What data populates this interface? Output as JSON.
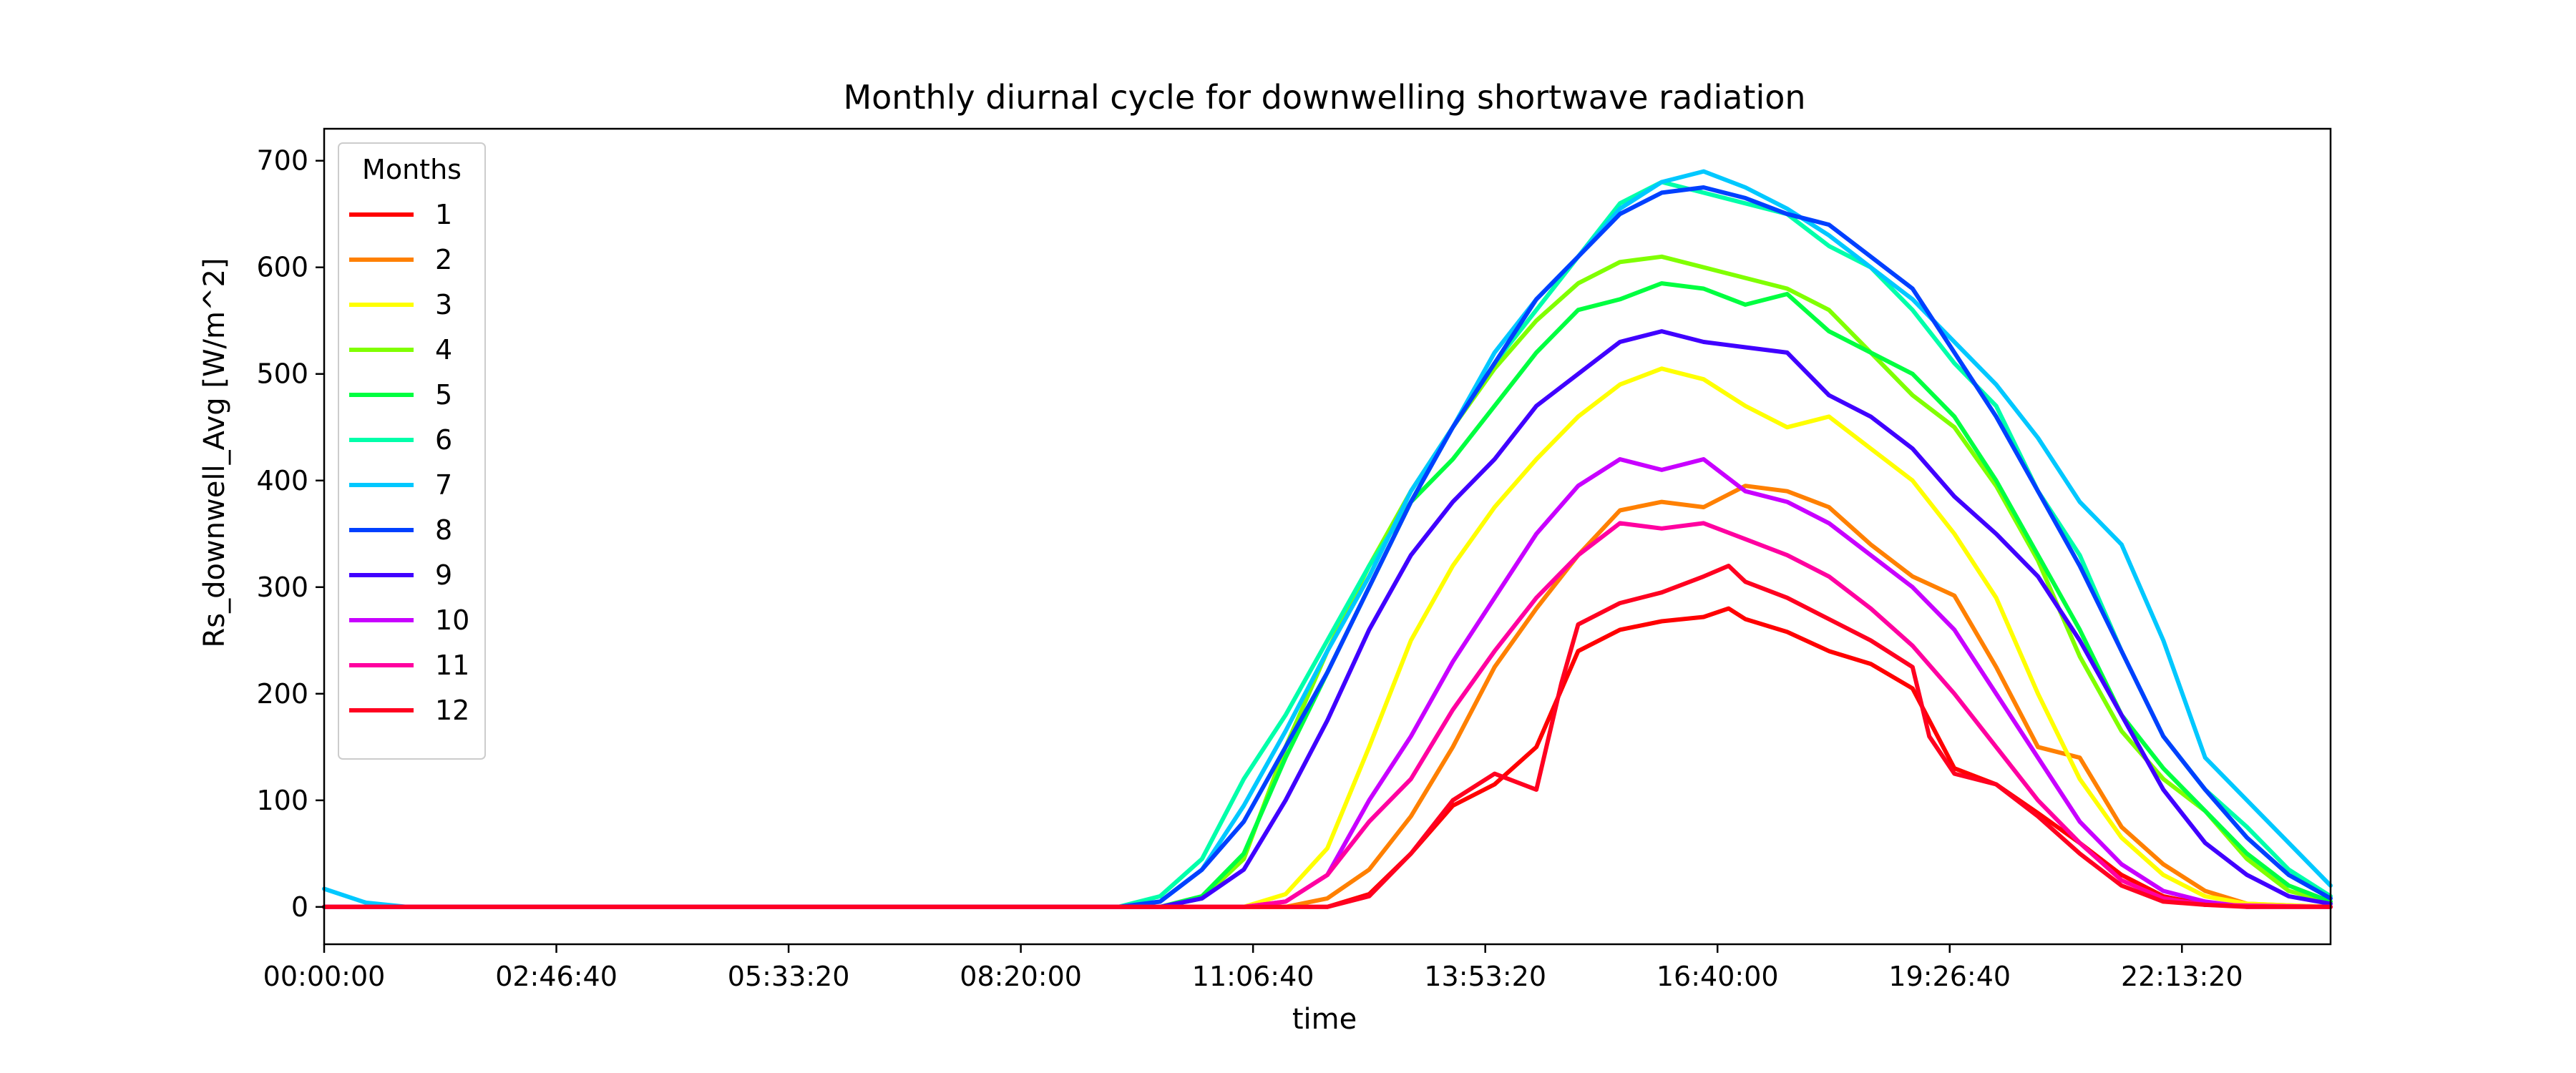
{
  "chart_data": {
    "type": "line",
    "title": "Monthly diurnal cycle for downwelling shortwave radiation",
    "xlabel": "time",
    "ylabel": "Rs_downwell_Avg [W/m^2]",
    "x_unit": "hour of day",
    "xlim": [
      0,
      24
    ],
    "ylim": [
      -35,
      730
    ],
    "x_ticks": [
      {
        "value": 0,
        "label": "00:00:00"
      },
      {
        "value": 2.7778,
        "label": "02:46:40"
      },
      {
        "value": 5.5556,
        "label": "05:33:20"
      },
      {
        "value": 8.3333,
        "label": "08:20:00"
      },
      {
        "value": 11.1111,
        "label": "11:06:40"
      },
      {
        "value": 13.8889,
        "label": "13:53:20"
      },
      {
        "value": 16.6667,
        "label": "16:40:00"
      },
      {
        "value": 19.4444,
        "label": "19:26:40"
      },
      {
        "value": 22.2222,
        "label": "22:13:20"
      }
    ],
    "y_ticks": [
      {
        "value": 0,
        "label": "0"
      },
      {
        "value": 100,
        "label": "100"
      },
      {
        "value": 200,
        "label": "200"
      },
      {
        "value": 300,
        "label": "300"
      },
      {
        "value": 400,
        "label": "400"
      },
      {
        "value": 500,
        "label": "500"
      },
      {
        "value": 600,
        "label": "600"
      },
      {
        "value": 700,
        "label": "700"
      }
    ],
    "grid": false,
    "legend": {
      "title": "Months",
      "placement": "upper-left"
    },
    "series": [
      {
        "name": "1",
        "color": "#ff0000",
        "x": [
          0,
          12.0,
          12.5,
          13.0,
          13.5,
          14.0,
          14.5,
          15.0,
          15.5,
          16.0,
          16.5,
          16.8,
          17.0,
          17.5,
          18.0,
          18.5,
          19.0,
          19.5,
          20.0,
          20.5,
          21.0,
          21.5,
          22.0,
          22.5,
          24
        ],
        "y": [
          0,
          0,
          12,
          50,
          95,
          115,
          150,
          240,
          260,
          268,
          272,
          280,
          270,
          258,
          240,
          228,
          205,
          130,
          115,
          88,
          60,
          30,
          10,
          2,
          0
        ]
      },
      {
        "name": "2",
        "color": "#ff8000",
        "x": [
          0,
          11.5,
          12.0,
          12.5,
          13.0,
          13.5,
          14.0,
          14.5,
          15.0,
          15.5,
          16.0,
          16.5,
          17.0,
          17.5,
          18.0,
          18.5,
          19.0,
          19.5,
          20.0,
          20.5,
          21.0,
          21.5,
          22.0,
          22.5,
          23.0,
          24
        ],
        "y": [
          0,
          0,
          8,
          35,
          85,
          150,
          225,
          280,
          330,
          372,
          380,
          375,
          395,
          390,
          375,
          340,
          310,
          292,
          225,
          150,
          140,
          75,
          40,
          15,
          3,
          0
        ]
      },
      {
        "name": "3",
        "color": "#ffff00",
        "x": [
          0,
          11.0,
          11.5,
          12.0,
          12.5,
          13.0,
          13.5,
          14.0,
          14.5,
          15.0,
          15.5,
          16.0,
          16.5,
          17.0,
          17.5,
          18.0,
          18.5,
          19.0,
          19.5,
          20.0,
          20.5,
          21.0,
          21.5,
          22.0,
          22.5,
          23.0,
          24
        ],
        "y": [
          0,
          0,
          12,
          55,
          150,
          250,
          320,
          375,
          420,
          460,
          490,
          505,
          495,
          470,
          450,
          460,
          430,
          400,
          350,
          290,
          200,
          120,
          65,
          30,
          10,
          3,
          0
        ]
      },
      {
        "name": "4",
        "color": "#80ff00",
        "x": [
          0,
          10.0,
          10.5,
          11.0,
          11.5,
          12.0,
          12.5,
          13.0,
          13.5,
          14.0,
          14.5,
          15.0,
          15.5,
          16.0,
          16.5,
          17.0,
          17.5,
          18.0,
          18.5,
          19.0,
          19.5,
          20.0,
          20.5,
          21.0,
          21.5,
          22.0,
          22.5,
          23.0,
          23.5,
          24
        ],
        "y": [
          0,
          0,
          8,
          45,
          150,
          240,
          320,
          390,
          450,
          505,
          550,
          585,
          605,
          610,
          600,
          590,
          580,
          560,
          520,
          480,
          450,
          395,
          325,
          235,
          165,
          120,
          90,
          45,
          15,
          5
        ]
      },
      {
        "name": "5",
        "color": "#00ff40",
        "x": [
          0,
          10.0,
          10.5,
          11.0,
          11.5,
          12.0,
          12.5,
          13.0,
          13.5,
          14.0,
          14.5,
          15.0,
          15.5,
          16.0,
          16.5,
          17.0,
          17.5,
          18.0,
          18.5,
          19.0,
          19.5,
          20.0,
          20.5,
          21.0,
          21.5,
          22.0,
          22.5,
          23.0,
          23.5,
          24
        ],
        "y": [
          0,
          0,
          10,
          50,
          140,
          220,
          300,
          380,
          420,
          470,
          520,
          560,
          570,
          585,
          580,
          565,
          575,
          540,
          520,
          500,
          460,
          400,
          330,
          260,
          180,
          130,
          90,
          50,
          20,
          5
        ]
      },
      {
        "name": "6",
        "color": "#00ffaa",
        "x": [
          0,
          9.5,
          10.0,
          10.5,
          11.0,
          11.5,
          12.0,
          12.5,
          13.0,
          13.5,
          14.0,
          14.5,
          15.0,
          15.5,
          16.0,
          16.5,
          17.0,
          17.5,
          18.0,
          18.5,
          19.0,
          19.5,
          20.0,
          20.5,
          21.0,
          21.5,
          22.0,
          22.5,
          23.0,
          23.5,
          24
        ],
        "y": [
          0,
          0,
          10,
          45,
          120,
          180,
          250,
          320,
          380,
          450,
          510,
          560,
          610,
          660,
          680,
          670,
          660,
          650,
          620,
          600,
          560,
          510,
          470,
          390,
          330,
          240,
          160,
          110,
          75,
          35,
          10
        ]
      },
      {
        "name": "7",
        "color": "#00c8ff",
        "x": [
          0,
          0.5,
          1.0,
          9.5,
          10.0,
          10.5,
          11.0,
          11.5,
          12.0,
          12.5,
          13.0,
          13.5,
          14.0,
          14.5,
          15.0,
          15.5,
          16.0,
          16.5,
          17.0,
          17.5,
          18.0,
          18.5,
          19.0,
          19.5,
          20.0,
          20.5,
          21.0,
          21.5,
          22.0,
          22.5,
          23.0,
          23.5,
          24
        ],
        "y": [
          17,
          4,
          0,
          0,
          5,
          35,
          95,
          165,
          240,
          310,
          390,
          450,
          520,
          570,
          610,
          655,
          680,
          690,
          675,
          655,
          630,
          600,
          570,
          530,
          490,
          440,
          380,
          340,
          250,
          140,
          100,
          60,
          20
        ]
      },
      {
        "name": "8",
        "color": "#0040ff",
        "x": [
          0,
          9.5,
          10.0,
          10.5,
          11.0,
          11.5,
          12.0,
          12.5,
          13.0,
          13.5,
          14.0,
          14.5,
          15.0,
          15.5,
          16.0,
          16.5,
          17.0,
          17.5,
          18.0,
          18.5,
          19.0,
          19.5,
          20.0,
          20.5,
          21.0,
          21.5,
          22.0,
          22.5,
          23.0,
          23.5,
          24
        ],
        "y": [
          0,
          0,
          5,
          35,
          80,
          150,
          220,
          300,
          380,
          450,
          510,
          570,
          610,
          650,
          670,
          675,
          665,
          650,
          640,
          610,
          580,
          520,
          460,
          390,
          320,
          240,
          160,
          110,
          65,
          30,
          8
        ]
      },
      {
        "name": "9",
        "color": "#4000ff",
        "x": [
          0,
          10.0,
          10.5,
          11.0,
          11.5,
          12.0,
          12.5,
          13.0,
          13.5,
          14.0,
          14.5,
          15.0,
          15.5,
          16.0,
          16.5,
          17.0,
          17.5,
          18.0,
          18.5,
          19.0,
          19.5,
          20.0,
          20.5,
          21.0,
          21.5,
          22.0,
          22.5,
          23.0,
          23.5,
          24
        ],
        "y": [
          0,
          0,
          8,
          35,
          100,
          175,
          260,
          330,
          380,
          420,
          470,
          500,
          530,
          540,
          530,
          525,
          520,
          480,
          460,
          430,
          385,
          350,
          310,
          250,
          180,
          110,
          60,
          30,
          10,
          3
        ]
      },
      {
        "name": "10",
        "color": "#c800ff",
        "x": [
          0,
          11.0,
          11.5,
          12.0,
          12.5,
          13.0,
          13.5,
          14.0,
          14.5,
          15.0,
          15.5,
          16.0,
          16.5,
          17.0,
          17.5,
          18.0,
          18.5,
          19.0,
          19.5,
          20.0,
          20.5,
          21.0,
          21.5,
          22.0,
          22.5,
          23.0,
          24
        ],
        "y": [
          0,
          0,
          5,
          30,
          100,
          160,
          230,
          290,
          350,
          395,
          420,
          410,
          420,
          390,
          380,
          360,
          330,
          300,
          260,
          200,
          140,
          80,
          40,
          15,
          5,
          0,
          0
        ]
      },
      {
        "name": "11",
        "color": "#ff00a0",
        "x": [
          0,
          11.0,
          11.5,
          12.0,
          12.5,
          13.0,
          13.5,
          14.0,
          14.5,
          15.0,
          15.5,
          16.0,
          16.5,
          17.0,
          17.5,
          18.0,
          18.5,
          19.0,
          19.5,
          20.0,
          20.5,
          21.0,
          21.5,
          22.0,
          22.5,
          24
        ],
        "y": [
          0,
          0,
          5,
          30,
          80,
          120,
          185,
          240,
          290,
          330,
          360,
          355,
          360,
          345,
          330,
          310,
          280,
          245,
          200,
          150,
          100,
          60,
          25,
          8,
          2,
          0
        ]
      },
      {
        "name": "12",
        "color": "#ff0020",
        "x": [
          0,
          12.0,
          12.5,
          13.0,
          13.5,
          14.0,
          14.5,
          14.8,
          15.0,
          15.5,
          16.0,
          16.5,
          16.8,
          17.0,
          17.5,
          18.0,
          18.5,
          19.0,
          19.2,
          19.5,
          20.0,
          20.5,
          21.0,
          21.5,
          22.0,
          22.5,
          23.0,
          24
        ],
        "y": [
          0,
          0,
          10,
          50,
          100,
          125,
          110,
          210,
          265,
          285,
          295,
          310,
          320,
          305,
          290,
          270,
          250,
          225,
          160,
          125,
          115,
          85,
          50,
          20,
          5,
          2,
          0,
          0
        ]
      }
    ]
  }
}
